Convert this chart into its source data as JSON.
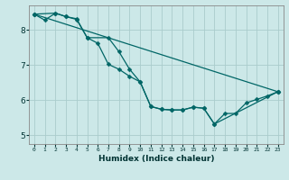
{
  "xlabel": "Humidex (Indice chaleur)",
  "bg_color": "#cce8e8",
  "grid_color": "#aacccc",
  "line_color": "#006666",
  "xlim": [
    -0.5,
    23.5
  ],
  "ylim": [
    4.75,
    8.7
  ],
  "yticks": [
    5,
    6,
    7,
    8
  ],
  "xticks": [
    0,
    1,
    2,
    3,
    4,
    5,
    6,
    7,
    8,
    9,
    10,
    11,
    12,
    13,
    14,
    15,
    16,
    17,
    18,
    19,
    20,
    21,
    22,
    23
  ],
  "line1_x": [
    0,
    1,
    2,
    3,
    4,
    5,
    6,
    7,
    8,
    9,
    10,
    11,
    12,
    13,
    14,
    15,
    16,
    17,
    18,
    19,
    20,
    21,
    22,
    23
  ],
  "line1_y": [
    8.45,
    8.28,
    8.48,
    8.38,
    8.32,
    7.78,
    7.62,
    7.02,
    6.88,
    6.68,
    6.52,
    5.82,
    5.74,
    5.72,
    5.72,
    5.8,
    5.77,
    5.32,
    5.62,
    5.62,
    5.92,
    6.02,
    6.12,
    6.24
  ],
  "line2_x": [
    0,
    2,
    3,
    4,
    5,
    7,
    8,
    9,
    10,
    11,
    12,
    13,
    14,
    15,
    16,
    17,
    23
  ],
  "line2_y": [
    8.45,
    8.48,
    8.38,
    8.3,
    7.78,
    7.78,
    7.38,
    6.88,
    6.52,
    5.82,
    5.74,
    5.72,
    5.72,
    5.8,
    5.77,
    5.32,
    6.24
  ],
  "line3_x": [
    0,
    23
  ],
  "line3_y": [
    8.45,
    6.24
  ],
  "marker_size": 2.5,
  "line_width": 0.9
}
